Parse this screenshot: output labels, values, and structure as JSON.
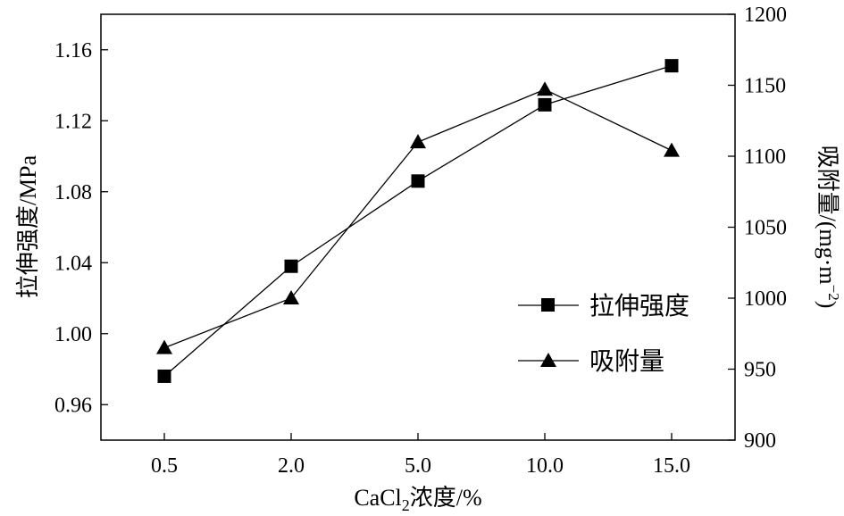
{
  "chart_data": {
    "type": "line",
    "categories": [
      "0.5",
      "2.0",
      "5.0",
      "10.0",
      "15.0"
    ],
    "xlabel_main": "CaCl",
    "xlabel_sub": "2",
    "xlabel_rest": "浓度/%",
    "ylabel_left": "拉伸强度/MPa",
    "ylabel_right_main": "吸附量/(mg·m",
    "ylabel_right_sup": "−2",
    "ylabel_right_end": ")",
    "ylim_left": [
      0.94,
      1.18
    ],
    "yticks_left": [
      "0.96",
      "1.00",
      "1.04",
      "1.08",
      "1.12",
      "1.16"
    ],
    "ylim_right": [
      900,
      1200
    ],
    "yticks_right": [
      "900",
      "950",
      "1000",
      "1050",
      "1100",
      "1150",
      "1200"
    ],
    "grid": false,
    "legend_position": "lower-right",
    "series": [
      {
        "name": "拉伸强度",
        "marker": "square",
        "axis": "left",
        "values": [
          0.976,
          1.038,
          1.086,
          1.129,
          1.151
        ]
      },
      {
        "name": "吸附量",
        "marker": "triangle",
        "axis": "right",
        "values": [
          965,
          1000,
          1110,
          1147,
          1104
        ]
      }
    ]
  }
}
